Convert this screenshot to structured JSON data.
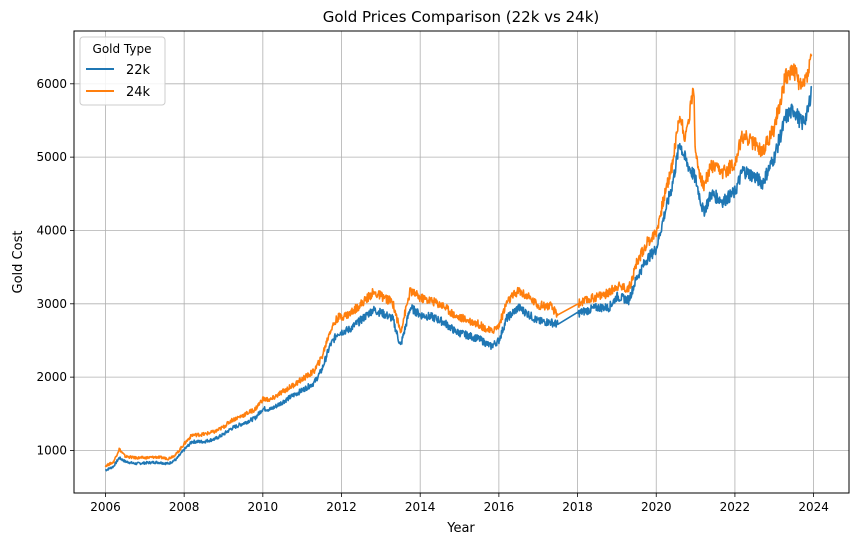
{
  "chart_data": {
    "type": "line",
    "title": "Gold Prices Comparison (22k vs 24k)",
    "xlabel": "Year",
    "ylabel": "Gold Cost",
    "xlim": [
      2005.2,
      2024.9
    ],
    "ylim": [
      420,
      6720
    ],
    "x_ticks": [
      2006,
      2008,
      2010,
      2012,
      2014,
      2016,
      2018,
      2020,
      2022,
      2024
    ],
    "y_ticks": [
      1000,
      2000,
      3000,
      4000,
      5000,
      6000
    ],
    "grid": true,
    "legend": {
      "title": "Gold Type",
      "position": "upper-left"
    },
    "series": [
      {
        "name": "22k",
        "color": "#1f77b4",
        "points": [
          [
            2006.0,
            730
          ],
          [
            2006.2,
            780
          ],
          [
            2006.35,
            900
          ],
          [
            2006.5,
            850
          ],
          [
            2006.75,
            820
          ],
          [
            2007.0,
            830
          ],
          [
            2007.3,
            840
          ],
          [
            2007.6,
            820
          ],
          [
            2007.8,
            880
          ],
          [
            2008.0,
            1010
          ],
          [
            2008.2,
            1120
          ],
          [
            2008.5,
            1120
          ],
          [
            2008.8,
            1160
          ],
          [
            2009.0,
            1220
          ],
          [
            2009.2,
            1300
          ],
          [
            2009.5,
            1370
          ],
          [
            2009.8,
            1440
          ],
          [
            2010.0,
            1570
          ],
          [
            2010.2,
            1560
          ],
          [
            2010.5,
            1660
          ],
          [
            2010.8,
            1760
          ],
          [
            2011.0,
            1820
          ],
          [
            2011.3,
            1920
          ],
          [
            2011.5,
            2100
          ],
          [
            2011.7,
            2420
          ],
          [
            2011.9,
            2600
          ],
          [
            2012.2,
            2650
          ],
          [
            2012.5,
            2780
          ],
          [
            2012.8,
            2920
          ],
          [
            2013.0,
            2880
          ],
          [
            2013.3,
            2800
          ],
          [
            2013.5,
            2420
          ],
          [
            2013.75,
            2950
          ],
          [
            2014.0,
            2850
          ],
          [
            2014.3,
            2820
          ],
          [
            2014.6,
            2750
          ],
          [
            2014.9,
            2620
          ],
          [
            2015.2,
            2570
          ],
          [
            2015.5,
            2520
          ],
          [
            2015.8,
            2420
          ],
          [
            2016.0,
            2500
          ],
          [
            2016.2,
            2800
          ],
          [
            2016.5,
            2950
          ],
          [
            2016.8,
            2840
          ],
          [
            2017.0,
            2760
          ],
          [
            2017.3,
            2750
          ],
          [
            2017.5,
            2720
          ],
          [
            2018.0,
            2870
          ],
          [
            2018.5,
            2950
          ],
          [
            2018.8,
            2950
          ],
          [
            2019.0,
            3100
          ],
          [
            2019.3,
            3050
          ],
          [
            2019.5,
            3350
          ],
          [
            2019.75,
            3600
          ],
          [
            2020.0,
            3750
          ],
          [
            2020.2,
            4200
          ],
          [
            2020.4,
            4600
          ],
          [
            2020.6,
            5200
          ],
          [
            2020.75,
            4950
          ],
          [
            2021.0,
            4700
          ],
          [
            2021.2,
            4250
          ],
          [
            2021.4,
            4500
          ],
          [
            2021.7,
            4400
          ],
          [
            2022.0,
            4520
          ],
          [
            2022.2,
            4820
          ],
          [
            2022.45,
            4750
          ],
          [
            2022.7,
            4650
          ],
          [
            2023.0,
            5000
          ],
          [
            2023.3,
            5550
          ],
          [
            2023.5,
            5650
          ],
          [
            2023.7,
            5450
          ],
          [
            2023.85,
            5600
          ],
          [
            2023.95,
            5950
          ]
        ]
      },
      {
        "name": "24k",
        "color": "#ff7f0e",
        "points": [
          [
            2006.0,
            790
          ],
          [
            2006.2,
            840
          ],
          [
            2006.35,
            1020
          ],
          [
            2006.5,
            920
          ],
          [
            2006.75,
            900
          ],
          [
            2007.0,
            900
          ],
          [
            2007.3,
            910
          ],
          [
            2007.6,
            890
          ],
          [
            2007.8,
            950
          ],
          [
            2008.0,
            1090
          ],
          [
            2008.2,
            1210
          ],
          [
            2008.5,
            1220
          ],
          [
            2008.8,
            1260
          ],
          [
            2009.0,
            1320
          ],
          [
            2009.2,
            1410
          ],
          [
            2009.5,
            1480
          ],
          [
            2009.8,
            1560
          ],
          [
            2010.0,
            1700
          ],
          [
            2010.2,
            1690
          ],
          [
            2010.5,
            1800
          ],
          [
            2010.8,
            1900
          ],
          [
            2011.0,
            1970
          ],
          [
            2011.3,
            2080
          ],
          [
            2011.5,
            2270
          ],
          [
            2011.7,
            2620
          ],
          [
            2011.9,
            2810
          ],
          [
            2012.2,
            2860
          ],
          [
            2012.5,
            3000
          ],
          [
            2012.8,
            3150
          ],
          [
            2013.0,
            3110
          ],
          [
            2013.3,
            3020
          ],
          [
            2013.5,
            2620
          ],
          [
            2013.75,
            3180
          ],
          [
            2014.0,
            3080
          ],
          [
            2014.3,
            3040
          ],
          [
            2014.6,
            2970
          ],
          [
            2014.9,
            2830
          ],
          [
            2015.2,
            2780
          ],
          [
            2015.5,
            2720
          ],
          [
            2015.8,
            2620
          ],
          [
            2016.0,
            2700
          ],
          [
            2016.2,
            3020
          ],
          [
            2016.5,
            3180
          ],
          [
            2016.8,
            3070
          ],
          [
            2017.0,
            2980
          ],
          [
            2017.3,
            2970
          ],
          [
            2017.5,
            2850
          ],
          [
            2018.0,
            3000
          ],
          [
            2018.5,
            3100
          ],
          [
            2018.8,
            3150
          ],
          [
            2019.0,
            3250
          ],
          [
            2019.3,
            3200
          ],
          [
            2019.5,
            3550
          ],
          [
            2019.75,
            3820
          ],
          [
            2020.0,
            3980
          ],
          [
            2020.2,
            4450
          ],
          [
            2020.4,
            4880
          ],
          [
            2020.6,
            5580
          ],
          [
            2020.75,
            5250
          ],
          [
            2020.95,
            5980
          ],
          [
            2021.0,
            5000
          ],
          [
            2021.2,
            4600
          ],
          [
            2021.4,
            4870
          ],
          [
            2021.7,
            4780
          ],
          [
            2022.0,
            4930
          ],
          [
            2022.2,
            5300
          ],
          [
            2022.45,
            5200
          ],
          [
            2022.7,
            5080
          ],
          [
            2023.0,
            5400
          ],
          [
            2023.3,
            6120
          ],
          [
            2023.5,
            6180
          ],
          [
            2023.7,
            5950
          ],
          [
            2023.85,
            6150
          ],
          [
            2023.95,
            6400
          ]
        ]
      }
    ]
  }
}
